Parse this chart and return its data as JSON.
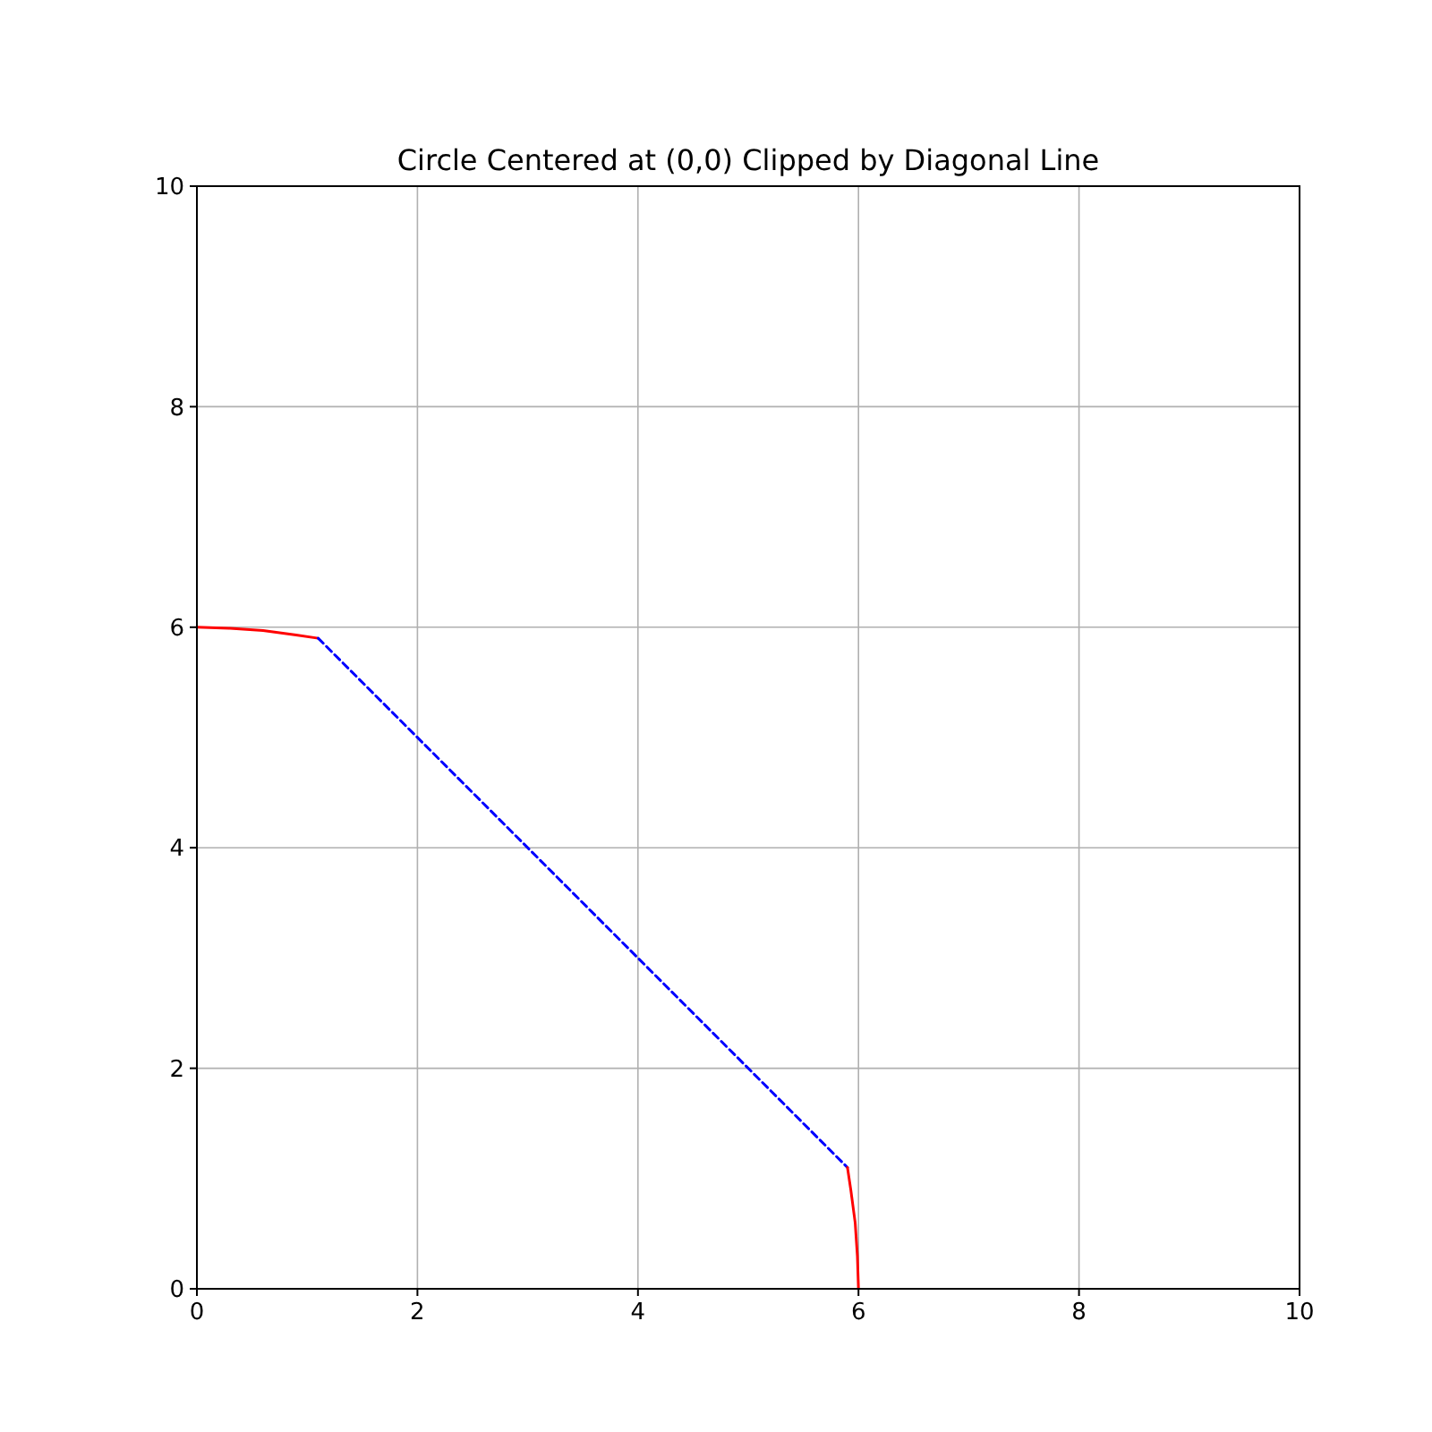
{
  "chart_data": {
    "type": "line",
    "title": "Circle Centered at (0,0) Clipped by Diagonal Line",
    "xlim": [
      0,
      10
    ],
    "ylim": [
      0,
      10
    ],
    "xticks": [
      0,
      2,
      4,
      6,
      8,
      10
    ],
    "yticks": [
      0,
      2,
      4,
      6,
      8,
      10
    ],
    "grid": true,
    "series": [
      {
        "color": "#ff0000",
        "line_style": "solid",
        "x": [
          0,
          0.3,
          0.6,
          0.9,
          1.1
        ],
        "values": [
          6,
          5.99,
          5.97,
          5.93,
          5.9
        ]
      },
      {
        "color": "#0000ff",
        "line_style": "dashed",
        "x": [
          1.1,
          5.9
        ],
        "values": [
          5.9,
          1.1
        ]
      },
      {
        "color": "#ff0000",
        "line_style": "solid",
        "x": [
          5.9,
          5.93,
          5.97,
          5.99,
          6
        ],
        "values": [
          1.1,
          0.9,
          0.6,
          0.3,
          0
        ]
      }
    ]
  }
}
